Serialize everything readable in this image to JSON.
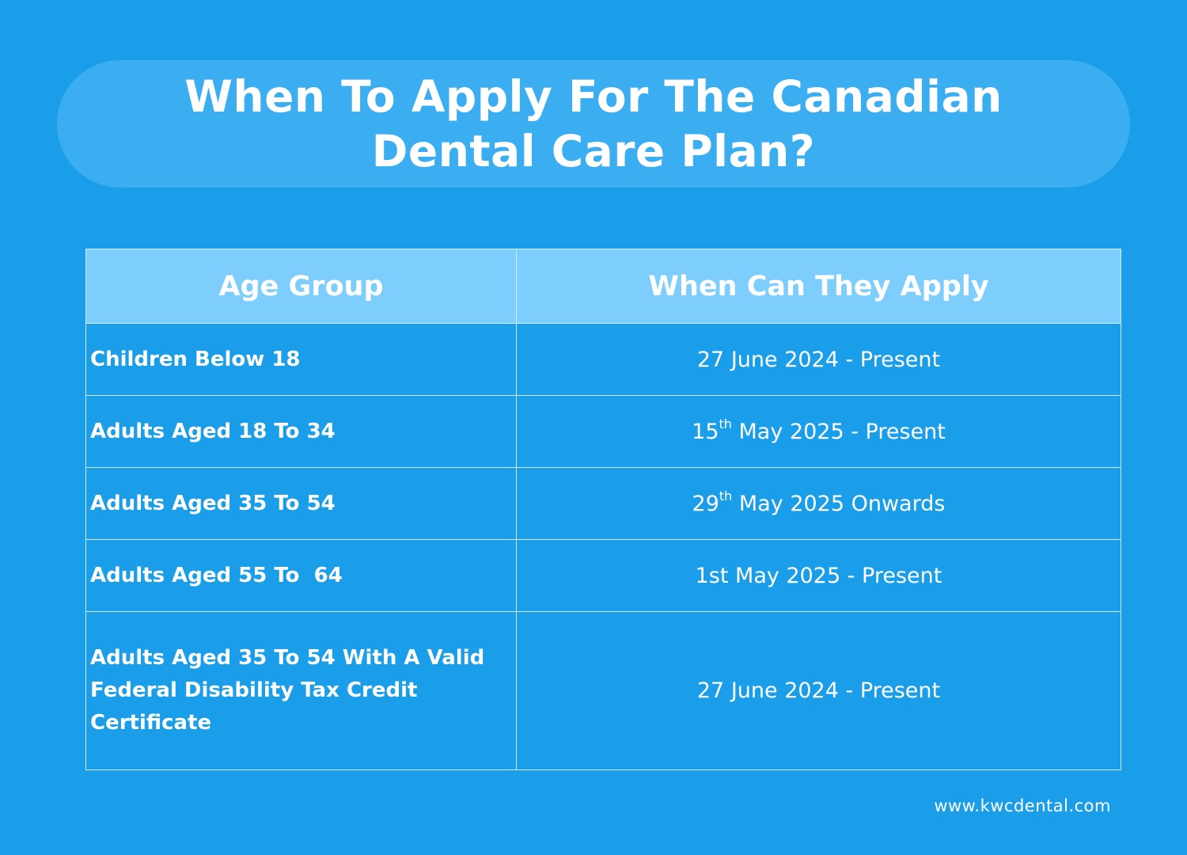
{
  "title": "When To Apply For The Canadian Dental Care Plan?",
  "table": {
    "headers": [
      "Age Group",
      "When Can They Apply"
    ],
    "rows": [
      {
        "age_group": "Children Below 18",
        "when_day": "27",
        "when_suffix": "",
        "when_rest": " June 2024 - Present"
      },
      {
        "age_group": "Adults Aged 18 To 34",
        "when_day": "15",
        "when_suffix": "th",
        "when_rest": " May 2025 - Present"
      },
      {
        "age_group": "Adults Aged 35 To 54",
        "when_day": "29",
        "when_suffix": "th",
        "when_rest": " May 2025 Onwards"
      },
      {
        "age_group": "Adults Aged 55 To  64",
        "when_day": "1st",
        "when_suffix": "",
        "when_rest": " May 2025 - Present"
      },
      {
        "age_group": "Adults Aged 35 To 54 With A Valid Federal Disability Tax Credit Certificate",
        "when_day": "27",
        "when_suffix": "",
        "when_rest": " June 2024 - Present"
      }
    ]
  },
  "footer": {
    "url": "www.kwcdental.com"
  },
  "colors": {
    "background": "#1a9ee9",
    "title_pill": "#3aaef0",
    "header_row": "#7dcdfd",
    "text": "#ffffff"
  }
}
